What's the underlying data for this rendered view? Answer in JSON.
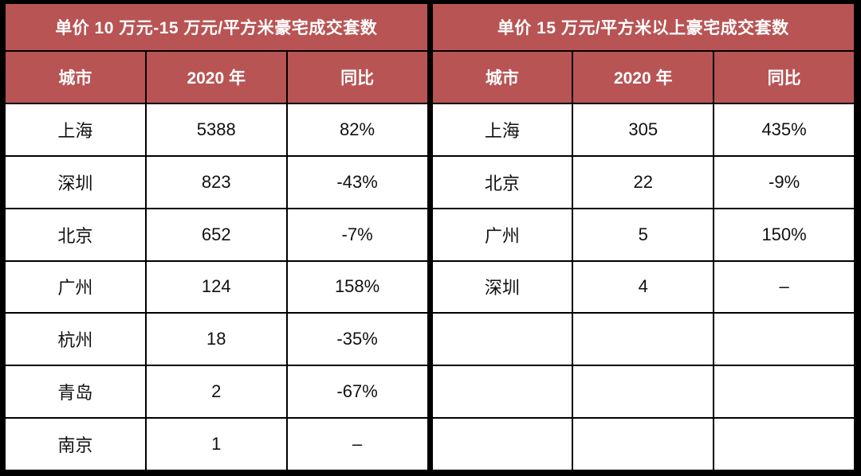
{
  "colors": {
    "header_bg": "#B95454",
    "header_text": "#FFFFFF",
    "grid_line": "#000000",
    "cell_bg": "#FFFFFF",
    "cell_text": "#111111"
  },
  "chart_data": [
    {
      "type": "table",
      "title": "单价 10 万元-15 万元/平方米豪宅成交套数",
      "columns": [
        "城市",
        "2020 年",
        "同比"
      ],
      "rows": [
        [
          "上海",
          "5388",
          "82%"
        ],
        [
          "深圳",
          "823",
          "-43%"
        ],
        [
          "北京",
          "652",
          "-7%"
        ],
        [
          "广州",
          "124",
          "158%"
        ],
        [
          "杭州",
          "18",
          "-35%"
        ],
        [
          "青岛",
          "2",
          "-67%"
        ],
        [
          "南京",
          "1",
          "–"
        ]
      ]
    },
    {
      "type": "table",
      "title": "单价 15 万元/平方米以上豪宅成交套数",
      "columns": [
        "城市",
        "2020 年",
        "同比"
      ],
      "rows": [
        [
          "上海",
          "305",
          "435%"
        ],
        [
          "北京",
          "22",
          "-9%"
        ],
        [
          "广州",
          "5",
          "150%"
        ],
        [
          "深圳",
          "4",
          "–"
        ],
        [
          "",
          "",
          ""
        ],
        [
          "",
          "",
          ""
        ],
        [
          "",
          "",
          ""
        ]
      ]
    }
  ]
}
